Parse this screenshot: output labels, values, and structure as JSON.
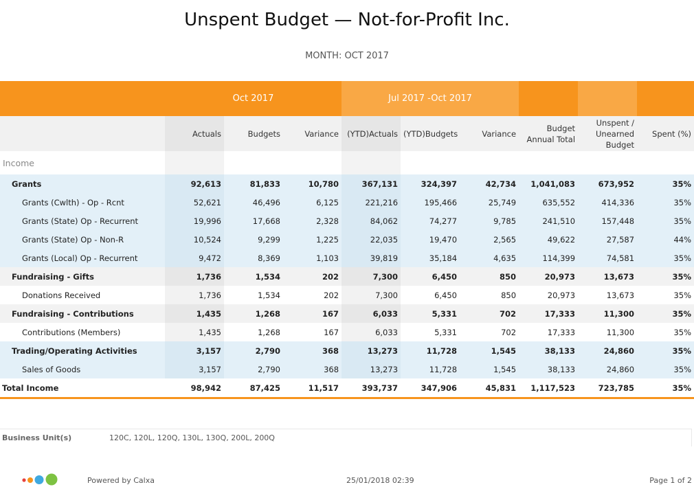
{
  "header": {
    "title": "Unspent Budget — Not-for-Profit Inc.",
    "subtitle": "MONTH: OCT 2017"
  },
  "bands": {
    "month": "Oct 2017",
    "ytd": "Jul 2017 -Oct 2017"
  },
  "columns": [
    "Actuals",
    "Budgets",
    "Variance",
    "(YTD)Actuals",
    "(YTD)Budgets",
    "Variance",
    "Budget Annual Total",
    "Unspent / Unearned Budget",
    "Spent (%)"
  ],
  "section_label": "Income",
  "rows": [
    {
      "type": "grp",
      "tone": "blue",
      "label": "Grants",
      "values": [
        "92,613",
        "81,833",
        "10,780",
        "367,131",
        "324,397",
        "42,734",
        "1,041,083",
        "673,952",
        "35%"
      ]
    },
    {
      "type": "sub",
      "tone": "blue",
      "label": "Grants (Cwlth) - Op - Rcnt",
      "values": [
        "52,621",
        "46,496",
        "6,125",
        "221,216",
        "195,466",
        "25,749",
        "635,552",
        "414,336",
        "35%"
      ]
    },
    {
      "type": "sub",
      "tone": "blue",
      "label": "Grants (State) Op - Recurrent",
      "values": [
        "19,996",
        "17,668",
        "2,328",
        "84,062",
        "74,277",
        "9,785",
        "241,510",
        "157,448",
        "35%"
      ]
    },
    {
      "type": "sub",
      "tone": "blue",
      "label": "Grants (State) Op - Non-R",
      "values": [
        "10,524",
        "9,299",
        "1,225",
        "22,035",
        "19,470",
        "2,565",
        "49,622",
        "27,587",
        "44%"
      ]
    },
    {
      "type": "sub",
      "tone": "blue",
      "label": "Grants (Local) Op - Recurrent",
      "values": [
        "9,472",
        "8,369",
        "1,103",
        "39,819",
        "35,184",
        "4,635",
        "114,399",
        "74,581",
        "35%"
      ]
    },
    {
      "type": "grp",
      "tone": "gray",
      "label": "Fundraising - Gifts",
      "values": [
        "1,736",
        "1,534",
        "202",
        "7,300",
        "6,450",
        "850",
        "20,973",
        "13,673",
        "35%"
      ]
    },
    {
      "type": "sub",
      "tone": "white",
      "label": "Donations Received",
      "values": [
        "1,736",
        "1,534",
        "202",
        "7,300",
        "6,450",
        "850",
        "20,973",
        "13,673",
        "35%"
      ]
    },
    {
      "type": "grp",
      "tone": "gray",
      "label": "Fundraising - Contributions",
      "values": [
        "1,435",
        "1,268",
        "167",
        "6,033",
        "5,331",
        "702",
        "17,333",
        "11,300",
        "35%"
      ]
    },
    {
      "type": "sub",
      "tone": "white",
      "label": "Contributions (Members)",
      "values": [
        "1,435",
        "1,268",
        "167",
        "6,033",
        "5,331",
        "702",
        "17,333",
        "11,300",
        "35%"
      ]
    },
    {
      "type": "grp",
      "tone": "blue",
      "label": "Trading/Operating Activities",
      "values": [
        "3,157",
        "2,790",
        "368",
        "13,273",
        "11,728",
        "1,545",
        "38,133",
        "24,860",
        "35%"
      ]
    },
    {
      "type": "sub",
      "tone": "blue",
      "label": "Sales of Goods",
      "values": [
        "3,157",
        "2,790",
        "368",
        "13,273",
        "11,728",
        "1,545",
        "38,133",
        "24,860",
        "35%"
      ]
    }
  ],
  "total": {
    "label": "Total Income",
    "values": [
      "98,942",
      "87,425",
      "11,517",
      "393,737",
      "347,906",
      "45,831",
      "1,117,523",
      "723,785",
      "35%"
    ]
  },
  "business_unit": {
    "label": "Business Unit(s)",
    "value": "120C, 120L, 120Q, 130L, 130Q, 200L, 200Q"
  },
  "footer": {
    "powered": "Powered by Calxa",
    "timestamp": "25/01/2018 02:39",
    "page": "Page 1 of 2",
    "logo_colors": [
      "#e8413c",
      "#f7941d",
      "#3fa9e0",
      "#7dc242"
    ]
  }
}
